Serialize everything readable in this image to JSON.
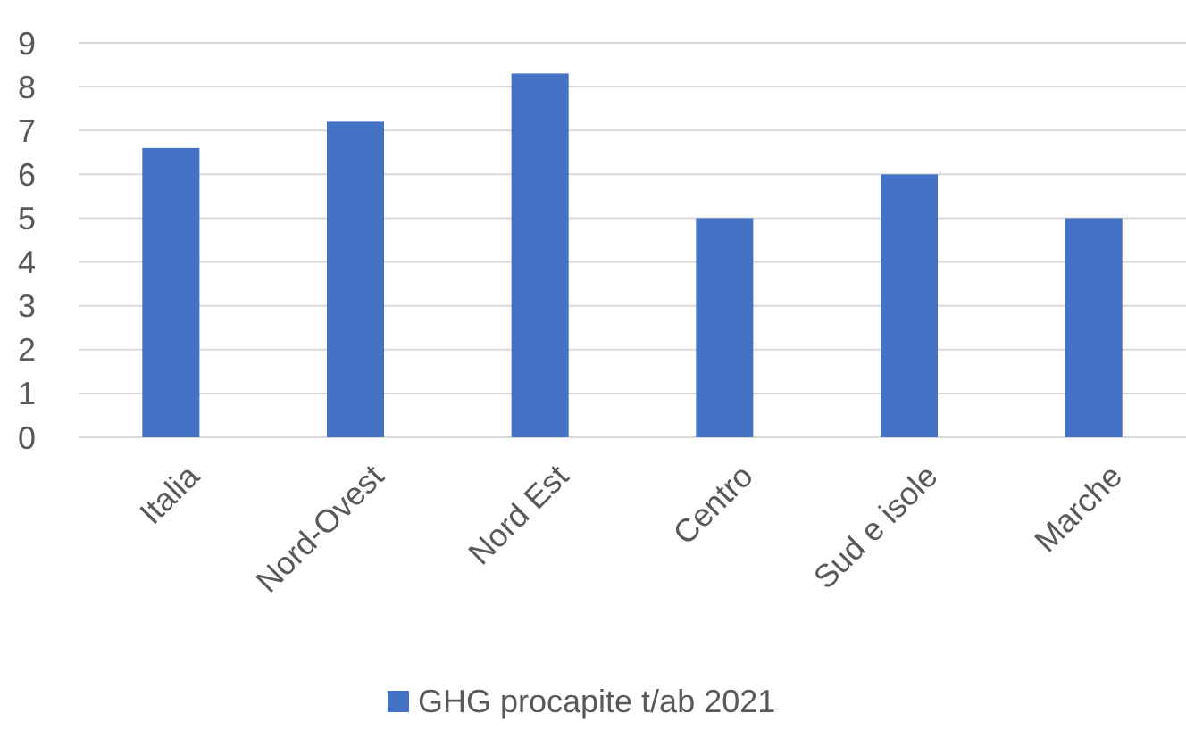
{
  "chart_data": {
    "type": "bar",
    "categories": [
      "Italia",
      "Nord-Ovest",
      "Nord Est",
      "Centro",
      "Sud e isole",
      "Marche"
    ],
    "series": [
      {
        "name": "GHG procapite t/ab 2021",
        "color": "#4472c4",
        "values": [
          6.6,
          7.2,
          8.3,
          5.0,
          6.0,
          5.0
        ]
      }
    ],
    "ylim": [
      0,
      9
    ],
    "yticks": [
      0,
      1,
      2,
      3,
      4,
      5,
      6,
      7,
      8,
      9
    ],
    "grid": "y",
    "legend": "bottom"
  }
}
